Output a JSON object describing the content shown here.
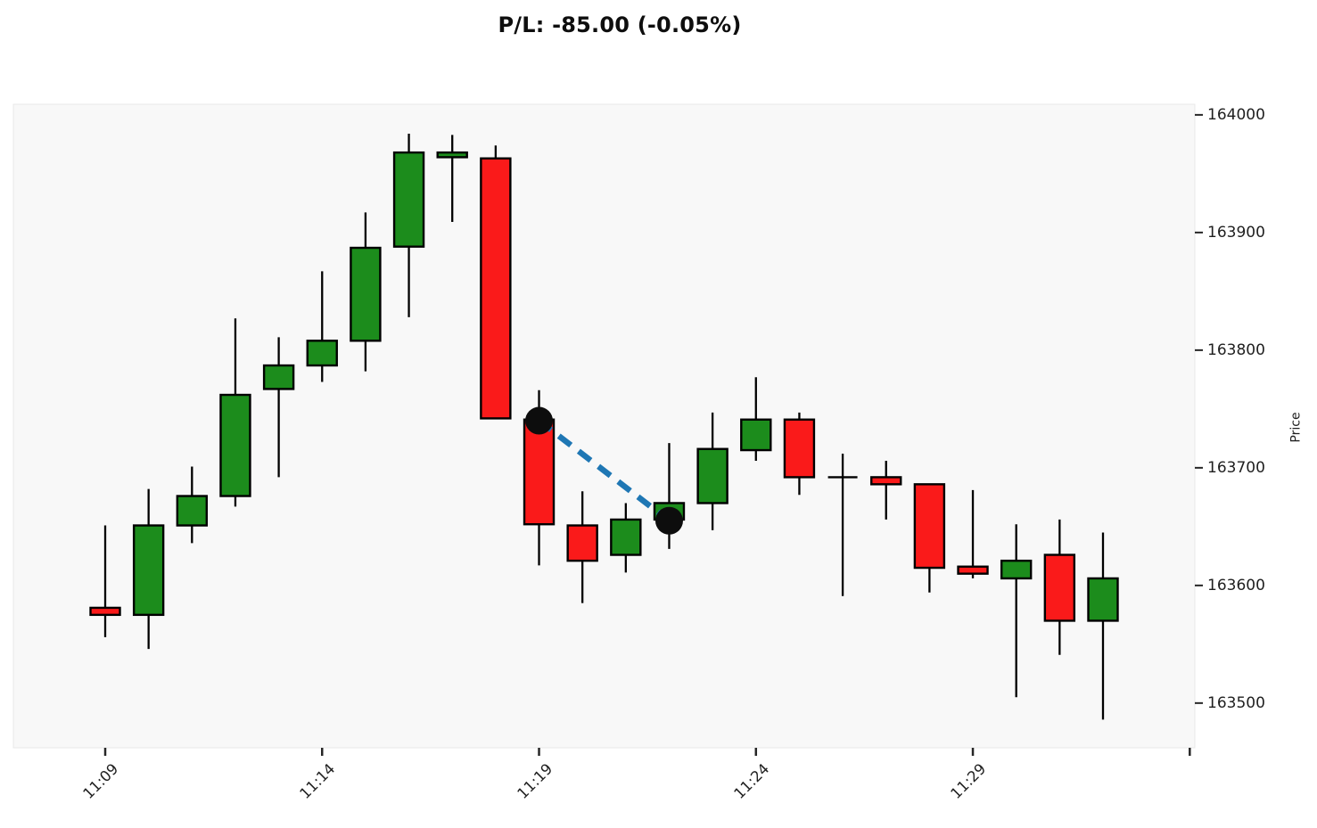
{
  "title": "P/L: -85.00 (-0.05%)",
  "axes": {
    "y_label": "Price",
    "y_ticks": [
      164000,
      163900,
      163800,
      163700,
      163600,
      163500
    ],
    "x_ticks": [
      {
        "index": 0,
        "label": "11:09"
      },
      {
        "index": 5,
        "label": "11:14"
      },
      {
        "index": 10,
        "label": "11:19"
      },
      {
        "index": 15,
        "label": "11:24"
      },
      {
        "index": 20,
        "label": "11:29"
      },
      {
        "index": 25,
        "label": ""
      }
    ]
  },
  "chart_data": {
    "type": "candlestick",
    "title": "P/L: -85.00 (-0.05%)",
    "xlabel": "",
    "ylabel": "Price",
    "ylim": [
      163462,
      164009
    ],
    "grid": false,
    "legend": false,
    "candles": [
      {
        "time": "11:09",
        "open": 163581,
        "high": 163651,
        "low": 163556,
        "close": 163575
      },
      {
        "time": "11:10",
        "open": 163575,
        "high": 163682,
        "low": 163546,
        "close": 163651
      },
      {
        "time": "11:11",
        "open": 163651,
        "high": 163701,
        "low": 163636,
        "close": 163676
      },
      {
        "time": "11:12",
        "open": 163676,
        "high": 163827,
        "low": 163667,
        "close": 163762
      },
      {
        "time": "11:13",
        "open": 163767,
        "high": 163811,
        "low": 163692,
        "close": 163787
      },
      {
        "time": "11:14",
        "open": 163787,
        "high": 163867,
        "low": 163773,
        "close": 163808
      },
      {
        "time": "11:15",
        "open": 163808,
        "high": 163917,
        "low": 163782,
        "close": 163887
      },
      {
        "time": "11:16",
        "open": 163888,
        "high": 163984,
        "low": 163828,
        "close": 163968
      },
      {
        "time": "11:17",
        "open": 163964,
        "high": 163983,
        "low": 163909,
        "close": 163968
      },
      {
        "time": "11:18",
        "open": 163963,
        "high": 163974,
        "low": 163742,
        "close": 163742
      },
      {
        "time": "11:19",
        "open": 163741,
        "high": 163766,
        "low": 163617,
        "close": 163652
      },
      {
        "time": "11:20",
        "open": 163651,
        "high": 163680,
        "low": 163585,
        "close": 163621
      },
      {
        "time": "11:21",
        "open": 163626,
        "high": 163670,
        "low": 163611,
        "close": 163656
      },
      {
        "time": "11:22",
        "open": 163656,
        "high": 163721,
        "low": 163631,
        "close": 163670
      },
      {
        "time": "11:23",
        "open": 163670,
        "high": 163747,
        "low": 163647,
        "close": 163716
      },
      {
        "time": "11:24",
        "open": 163715,
        "high": 163777,
        "low": 163706,
        "close": 163741
      },
      {
        "time": "11:25",
        "open": 163741,
        "high": 163747,
        "low": 163677,
        "close": 163692
      },
      {
        "time": "11:26",
        "open": 163692,
        "high": 163712,
        "low": 163591,
        "close": 163692
      },
      {
        "time": "11:27",
        "open": 163692,
        "high": 163706,
        "low": 163656,
        "close": 163686
      },
      {
        "time": "11:28",
        "open": 163686,
        "high": 163686,
        "low": 163594,
        "close": 163615
      },
      {
        "time": "11:29",
        "open": 163616,
        "high": 163681,
        "low": 163606,
        "close": 163610
      },
      {
        "time": "11:30",
        "open": 163606,
        "high": 163652,
        "low": 163505,
        "close": 163621
      },
      {
        "time": "11:31",
        "open": 163626,
        "high": 163656,
        "low": 163541,
        "close": 163570
      },
      {
        "time": "11:32",
        "open": 163570,
        "high": 163645,
        "low": 163486,
        "close": 163606
      }
    ],
    "trade": {
      "entry": {
        "time": "11:19",
        "price": 163740
      },
      "exit": {
        "time": "11:22",
        "price": 163655
      },
      "pl": "-85.00",
      "pl_pct": "-0.05%",
      "line_style": "dashed"
    },
    "colors": {
      "up": "#1c8c1c",
      "down": "#fa1a1a",
      "doji": "#000000",
      "wick": "#000000",
      "body_border": "#000000",
      "marker": "#0d0d0d",
      "trade_line": "#1f77b4",
      "plot_bg": "#f8f8f8",
      "plot_border": "#e8e8e8",
      "fig_bg": "#ffffff",
      "tick": "#262626"
    }
  }
}
